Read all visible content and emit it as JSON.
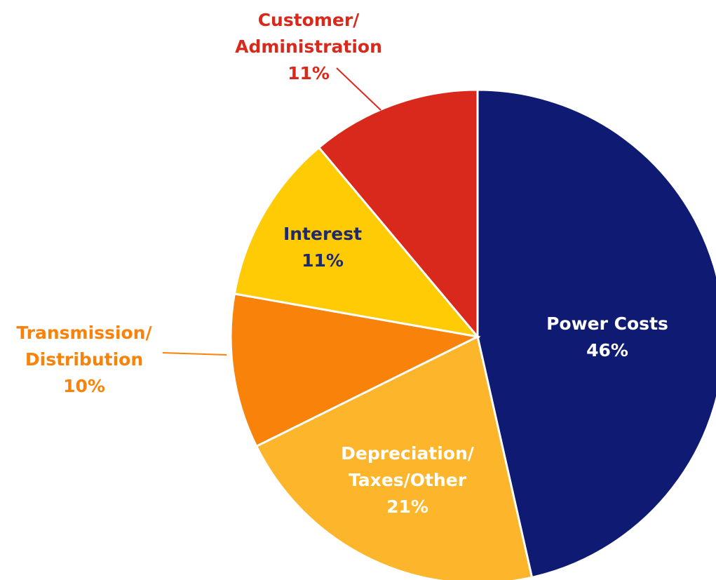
{
  "chart_data": {
    "type": "pie",
    "categories": [
      [
        "Power Costs"
      ],
      [
        "Depreciation/",
        "Taxes/Other"
      ],
      [
        "Transmission/",
        "Distribution"
      ],
      [
        "Interest"
      ],
      [
        "Customer/",
        "Administration"
      ]
    ],
    "values": [
      46,
      21,
      10,
      11,
      11
    ],
    "value_labels": [
      "46%",
      "21%",
      "10%",
      "11%",
      "11%"
    ],
    "colors": [
      "#0f1a73",
      "#fdb52b",
      "#f9820b",
      "#ffcb05",
      "#d9291c"
    ]
  }
}
